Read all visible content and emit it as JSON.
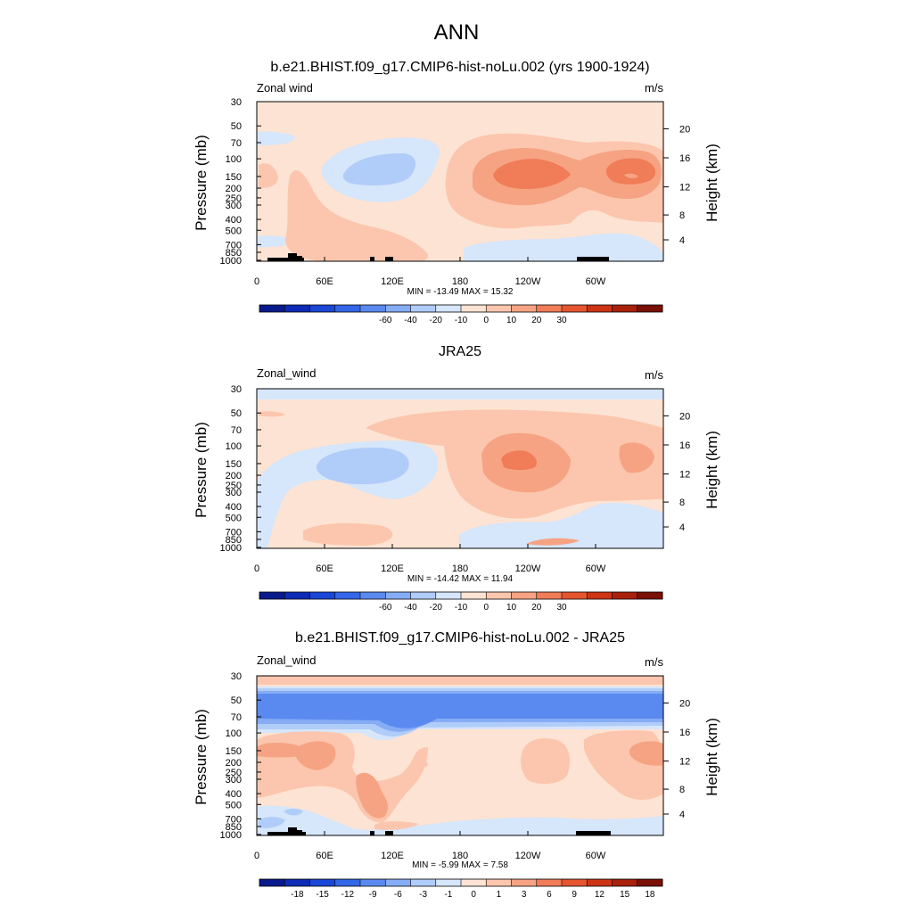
{
  "figure": {
    "title": "ANN"
  },
  "chart_data": [
    {
      "type": "heatmap",
      "title": "b.e21.BHIST.f09_g17.CMIP6-hist-noLu.002 (yrs 1900-1924)",
      "left_label": "Zonal wind",
      "right_label": "m/s",
      "xlabel": "",
      "ylabel": "Pressure (mb)",
      "y2label": "Height (km)",
      "x_ticks": [
        "0",
        "60E",
        "120E",
        "180",
        "120W",
        "60W"
      ],
      "y_ticks": [
        "30",
        "50",
        "70",
        "100",
        "150",
        "200",
        "250",
        "300",
        "400",
        "500",
        "700",
        "850",
        "1000"
      ],
      "y2_ticks": [
        "20",
        "16",
        "12",
        "8",
        "4"
      ],
      "stats": "MIN = -13.49  MAX =  15.32",
      "colorbar": {
        "labels": [
          "-60",
          "-40",
          "-20",
          "-10",
          "0",
          "10",
          "20",
          "30"
        ]
      },
      "has_topography": true
    },
    {
      "type": "heatmap",
      "title": "JRA25",
      "left_label": "Zonal_wind",
      "right_label": "m/s",
      "xlabel": "",
      "ylabel": "Pressure (mb)",
      "y2label": "Height (km)",
      "x_ticks": [
        "0",
        "60E",
        "120E",
        "180",
        "120W",
        "60W"
      ],
      "y_ticks": [
        "30",
        "50",
        "70",
        "100",
        "150",
        "200",
        "250",
        "300",
        "400",
        "500",
        "700",
        "850",
        "1000"
      ],
      "y2_ticks": [
        "20",
        "16",
        "12",
        "8",
        "4"
      ],
      "stats": "MIN = -14.42  MAX =  11.94",
      "colorbar": {
        "labels": [
          "-60",
          "-40",
          "-20",
          "-10",
          "0",
          "10",
          "20",
          "30"
        ]
      },
      "has_topography": false
    },
    {
      "type": "heatmap",
      "title": "b.e21.BHIST.f09_g17.CMIP6-hist-noLu.002 - JRA25",
      "left_label": "Zonal_wind",
      "right_label": "m/s",
      "xlabel": "",
      "ylabel": "Pressure (mb)",
      "y2label": "Height (km)",
      "x_ticks": [
        "0",
        "60E",
        "120E",
        "180",
        "120W",
        "60W"
      ],
      "y_ticks": [
        "30",
        "50",
        "70",
        "100",
        "150",
        "200",
        "250",
        "300",
        "400",
        "500",
        "700",
        "850",
        "1000"
      ],
      "y2_ticks": [
        "20",
        "16",
        "12",
        "8",
        "4"
      ],
      "stats": "MIN = -5.99  MAX =  7.58",
      "colorbar": {
        "labels": [
          "-18",
          "-15",
          "-12",
          "-9",
          "-6",
          "-3",
          "-1",
          "0",
          "1",
          "3",
          "6",
          "9",
          "12",
          "15",
          "18"
        ]
      },
      "has_topography": true
    }
  ],
  "palette": {
    "colorbar_colors": [
      "#081a8c",
      "#0d2bb5",
      "#1a47d6",
      "#3366e8",
      "#5a8af0",
      "#86acf5",
      "#b0ccf8",
      "#d6e6fb",
      "#fde3d3",
      "#fbc6ad",
      "#f6a383",
      "#f07c58",
      "#e5552f",
      "#cc3414",
      "#a8210b",
      "#7a1006"
    ],
    "field": {
      "neutral_pos": "#fde3d3",
      "light_red": "#fbc6ad",
      "mid_red": "#f6a383",
      "red": "#f07c58",
      "neutral_neg": "#d6e6fb",
      "light_blue": "#b0ccf8",
      "blue": "#86acf5",
      "mid_blue": "#5a8af0"
    }
  }
}
